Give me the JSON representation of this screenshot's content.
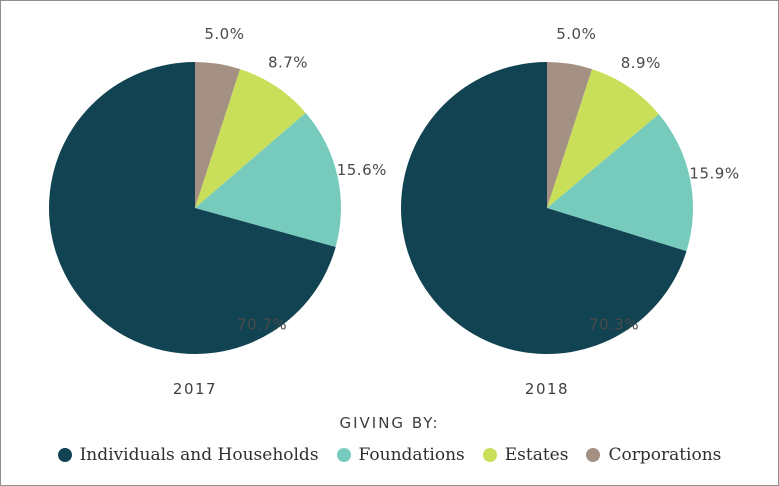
{
  "chart_data": {
    "type": "pie",
    "legend_title": "GIVING BY:",
    "legend_position": "bottom",
    "categories": [
      "Individuals and Households",
      "Foundations",
      "Estates",
      "Corporations"
    ],
    "colors": [
      "#114352",
      "#77cbbd",
      "#c9df5a",
      "#a49183"
    ],
    "charts": [
      {
        "title": "2017",
        "values": [
          70.7,
          15.6,
          8.7,
          5.0
        ],
        "labels": [
          "70.7%",
          "15.6%",
          "8.7%",
          "5.0%"
        ]
      },
      {
        "title": "2018",
        "values": [
          70.3,
          15.9,
          8.9,
          5.0
        ],
        "labels": [
          "70.3%",
          "15.9%",
          "8.9%",
          "5.0%"
        ]
      }
    ]
  }
}
